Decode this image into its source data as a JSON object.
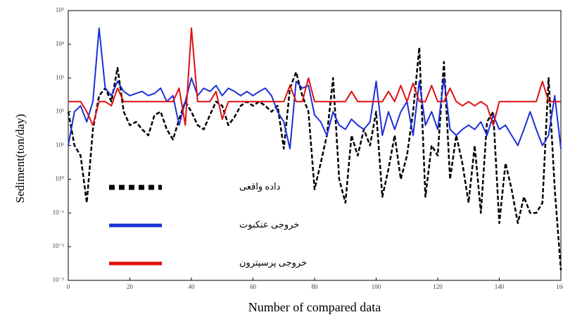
{
  "chart_data": {
    "type": "line",
    "xlabel": "Number of compared data",
    "ylabel": "Sediment(ton/day)",
    "x": [
      0,
      2,
      4,
      6,
      8,
      10,
      12,
      14,
      16,
      18,
      20,
      22,
      24,
      26,
      28,
      30,
      32,
      34,
      36,
      38,
      40,
      42,
      44,
      46,
      48,
      50,
      52,
      54,
      56,
      58,
      60,
      62,
      64,
      66,
      68,
      70,
      72,
      74,
      76,
      78,
      80,
      82,
      84,
      86,
      88,
      90,
      92,
      94,
      96,
      98,
      100,
      102,
      104,
      106,
      108,
      110,
      112,
      114,
      116,
      118,
      120,
      122,
      124,
      126,
      128,
      130,
      132,
      134,
      136,
      138,
      140,
      142,
      144,
      146,
      148,
      150,
      152,
      154,
      156,
      158,
      160
    ],
    "series": [
      {
        "name": "داده واقعی",
        "color": "#000000",
        "line_style": "dashed",
        "values": [
          100,
          10,
          5,
          0.2,
          30,
          300,
          500,
          200,
          2000,
          100,
          40,
          50,
          30,
          20,
          80,
          100,
          30,
          15,
          60,
          200,
          100,
          40,
          30,
          80,
          200,
          150,
          40,
          70,
          150,
          200,
          150,
          200,
          150,
          100,
          150,
          8,
          500,
          1500,
          300,
          100,
          0.5,
          3,
          20,
          1000,
          1,
          0.2,
          20,
          5,
          30,
          10,
          100,
          0.3,
          2,
          20,
          1,
          5,
          100,
          8000,
          0.3,
          10,
          5,
          3000,
          1,
          20,
          3,
          0.2,
          10,
          0.1,
          50,
          100,
          0.05,
          3,
          0.5,
          0.05,
          0.3,
          0.1,
          0.1,
          0.2,
          1000,
          0.5,
          0.002
        ]
      },
      {
        "name": "خروجی عنکبوت",
        "color": "#1c2fd6",
        "line_style": "solid",
        "values": [
          10,
          100,
          150,
          50,
          200,
          30000,
          500,
          300,
          800,
          400,
          300,
          350,
          400,
          300,
          350,
          500,
          200,
          300,
          40,
          200,
          1000,
          300,
          500,
          400,
          600,
          300,
          500,
          400,
          300,
          400,
          300,
          400,
          500,
          300,
          100,
          50,
          8,
          800,
          500,
          600,
          80,
          50,
          20,
          100,
          40,
          30,
          60,
          40,
          30,
          50,
          800,
          20,
          100,
          30,
          100,
          200,
          20,
          800,
          40,
          100,
          30,
          1000,
          30,
          20,
          30,
          40,
          30,
          50,
          20,
          80,
          30,
          40,
          20,
          10,
          30,
          100,
          30,
          10,
          20,
          300,
          8
        ]
      },
      {
        "name": "خروجی پرسپترون",
        "color": "#e01010",
        "line_style": "solid",
        "values": [
          200,
          200,
          200,
          100,
          40,
          200,
          200,
          150,
          500,
          200,
          200,
          200,
          200,
          200,
          200,
          200,
          200,
          200,
          500,
          40,
          30000,
          200,
          200,
          200,
          400,
          60,
          200,
          200,
          200,
          200,
          200,
          200,
          200,
          200,
          200,
          200,
          600,
          200,
          200,
          1000,
          200,
          200,
          200,
          200,
          200,
          200,
          400,
          200,
          200,
          200,
          200,
          200,
          400,
          200,
          600,
          200,
          700,
          200,
          200,
          600,
          200,
          200,
          500,
          200,
          150,
          200,
          150,
          200,
          150,
          40,
          200,
          200,
          200,
          200,
          200,
          200,
          200,
          800,
          200,
          200,
          200
        ]
      }
    ],
    "xlim": [
      0,
      160
    ],
    "xticks": [
      0,
      20,
      40,
      60,
      80,
      100,
      120,
      140,
      160
    ],
    "ylim": [
      0.001,
      100000
    ],
    "ylog": true,
    "yticks": [
      {
        "value": 0.001,
        "label": "10⁻³"
      },
      {
        "value": 0.01,
        "label": "10⁻²"
      },
      {
        "value": 0.1,
        "label": "10⁻¹"
      },
      {
        "value": 1,
        "label": "10⁰"
      },
      {
        "value": 10,
        "label": "10¹"
      },
      {
        "value": 100,
        "label": "10²"
      },
      {
        "value": 1000,
        "label": "10³"
      },
      {
        "value": 10000,
        "label": "10⁴"
      },
      {
        "value": 100000,
        "label": "10⁵"
      }
    ],
    "grid": false,
    "legend": "center-left"
  }
}
